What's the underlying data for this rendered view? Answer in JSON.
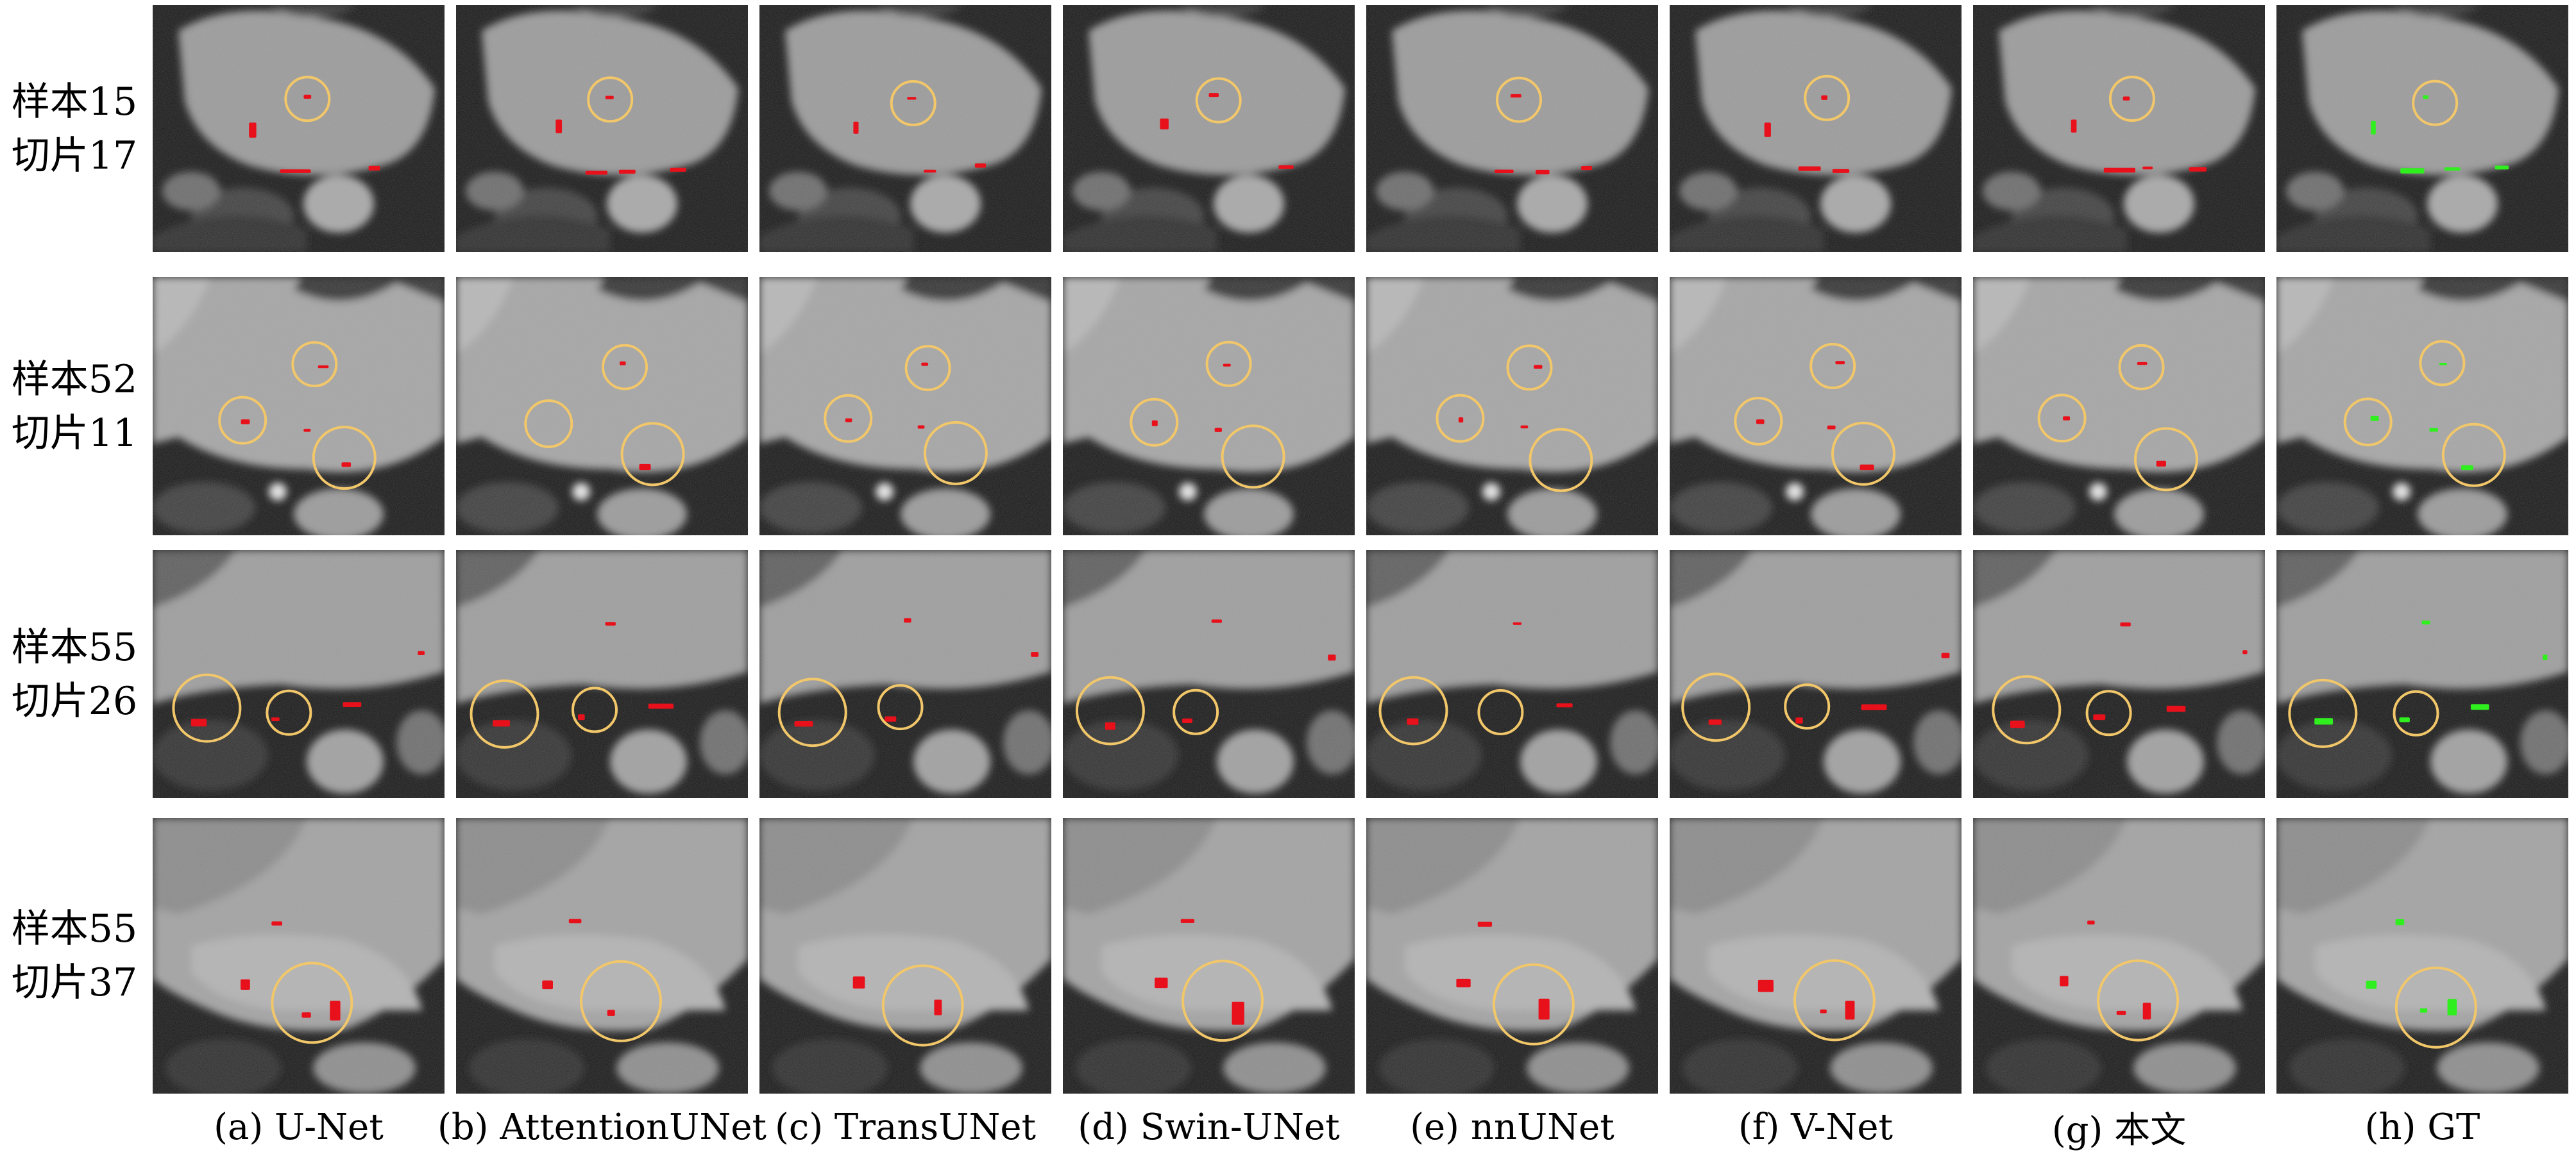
{
  "colors": {
    "prediction": "#e8101a",
    "ground_truth": "#2ff01e",
    "highlight_circle": "#f2c76a",
    "background": "#ffffff"
  },
  "columns": [
    {
      "id": "a",
      "label": "(a) U-Net"
    },
    {
      "id": "b",
      "label": "(b) AttentionUNet"
    },
    {
      "id": "c",
      "label": "(c) TransUNet"
    },
    {
      "id": "d",
      "label": "(d) Swin-UNet"
    },
    {
      "id": "e",
      "label": "(e) nnUNet"
    },
    {
      "id": "f",
      "label": "(f) V-Net"
    },
    {
      "id": "g",
      "label": "(g) 本文"
    },
    {
      "id": "h",
      "label": "(h) GT"
    }
  ],
  "rows": [
    {
      "sample": "样本15",
      "slice": "切片17"
    },
    {
      "sample": "样本52",
      "slice": "切片11"
    },
    {
      "sample": "样本55",
      "slice": "切片26"
    },
    {
      "sample": "样本55",
      "slice": "切片37"
    }
  ],
  "image_content": "grayscale cardiac MRI slices with red predicted segmentation, green ground-truth segmentation and yellow circles marking regions of interest"
}
